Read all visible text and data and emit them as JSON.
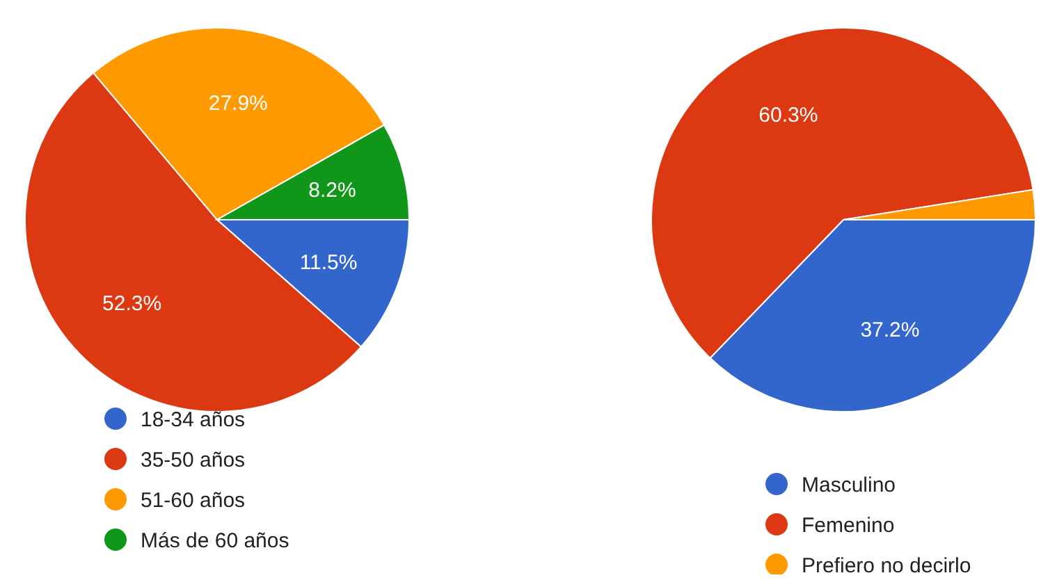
{
  "chart_data": [
    {
      "type": "pie",
      "categories": [
        "18-34 años",
        "35-50 años",
        "51-60 años",
        "Más de 60 años"
      ],
      "values": [
        11.5,
        52.3,
        27.9,
        8.2
      ],
      "colors": [
        "#3366cc",
        "#dc3912",
        "#ff9900",
        "#109618"
      ],
      "value_labels": [
        "11.5%",
        "52.3%",
        "27.9%",
        "8.2%"
      ],
      "legend": "bottom"
    },
    {
      "type": "pie",
      "categories": [
        "Masculino",
        "Femenino",
        "Prefiero no decirlo"
      ],
      "values": [
        37.2,
        60.3,
        2.5
      ],
      "colors": [
        "#3366cc",
        "#dc3912",
        "#ff9900"
      ],
      "value_labels": [
        "37.2%",
        "60.3%",
        null
      ],
      "legend": "bottom"
    }
  ]
}
